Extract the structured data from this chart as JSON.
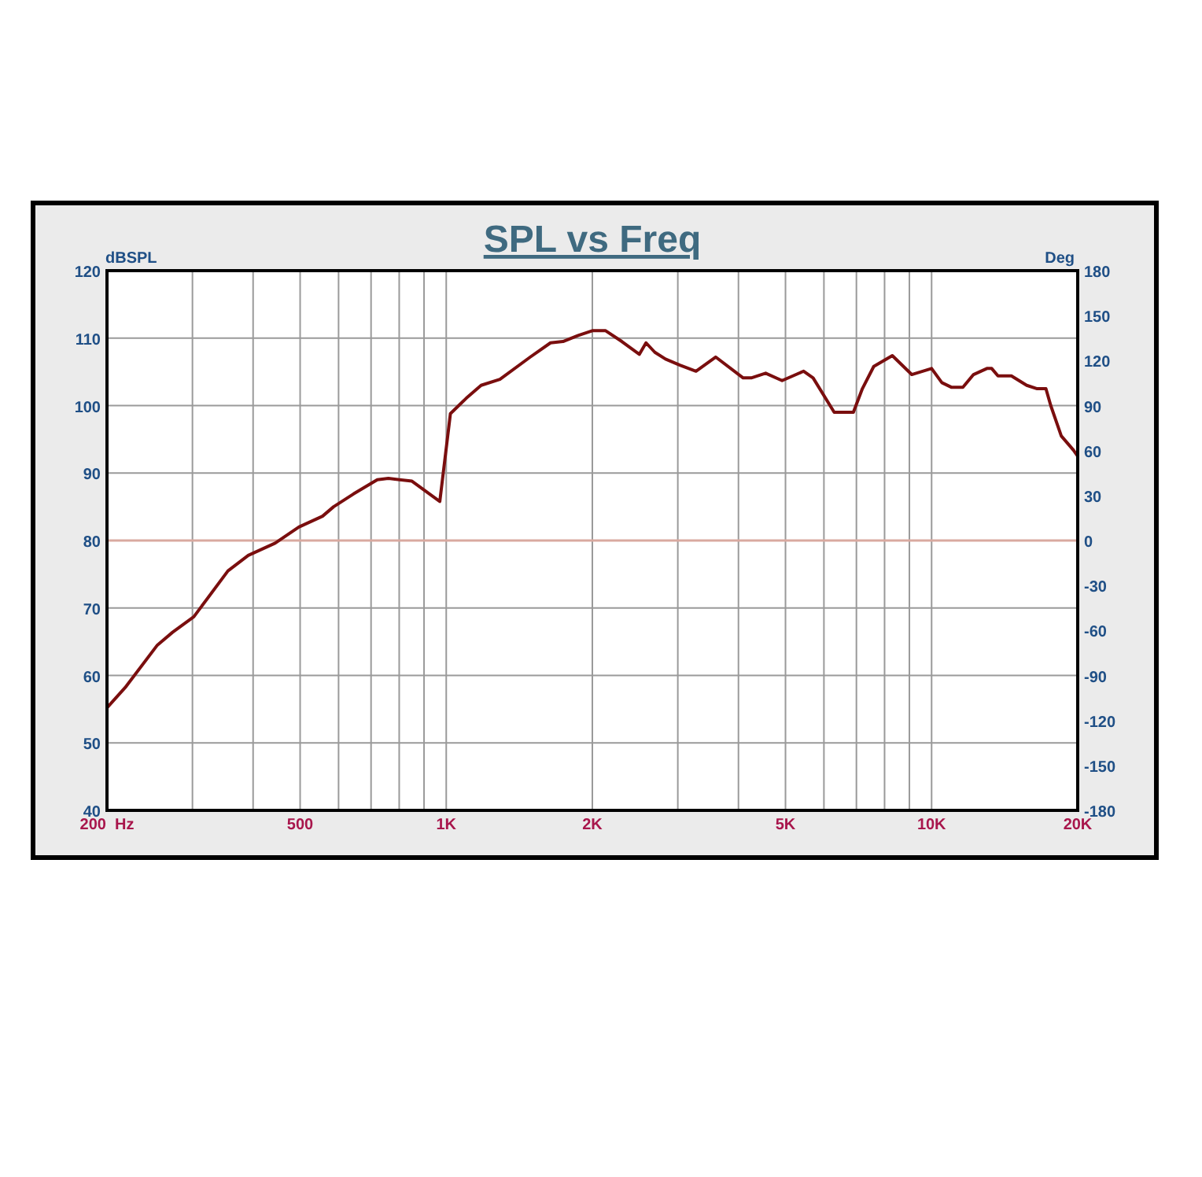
{
  "chart_data": {
    "type": "line",
    "title": "SPL vs Freq",
    "ylabel": "dBSPL",
    "y2label": "Deg",
    "log": "x",
    "x": [
      200,
      218,
      254,
      273,
      302,
      355,
      391,
      444,
      497,
      556,
      586,
      644,
      721,
      760,
      850,
      970,
      1020,
      1100,
      1180,
      1290,
      1490,
      1640,
      1740,
      1870,
      2000,
      2130,
      2300,
      2500,
      2580,
      2690,
      2830,
      3030,
      3270,
      3590,
      4090,
      4250,
      4550,
      4920,
      5450,
      5700,
      6300,
      6900,
      7200,
      7600,
      8300,
      9100,
      10000,
      10500,
      11000,
      11600,
      12200,
      13000,
      13300,
      13700,
      14600,
      15700,
      16500,
      17200,
      17600,
      18500,
      19600,
      20000
    ],
    "series": [
      {
        "color": "#7a0e0e",
        "values": [
          55.2,
          58.2,
          64.5,
          66.4,
          68.7,
          75.5,
          77.8,
          79.6,
          82,
          83.6,
          85,
          86.9,
          89,
          89.2,
          88.8,
          85.8,
          98.8,
          101.1,
          103,
          103.9,
          107.2,
          109.3,
          109.5,
          110.4,
          111.1,
          111.1,
          109.5,
          107.6,
          109.3,
          107.9,
          106.9,
          106,
          105.1,
          107.2,
          104.1,
          104.1,
          104.8,
          103.7,
          105.1,
          104.1,
          99,
          99,
          102.5,
          105.8,
          107.4,
          104.6,
          105.5,
          103.4,
          102.7,
          102.7,
          104.6,
          105.5,
          105.5,
          104.4,
          104.4,
          103,
          102.5,
          102.5,
          100,
          95.5,
          93.4,
          92.5
        ]
      }
    ],
    "xlim": [
      200,
      20000
    ],
    "xticks": [
      {
        "value": 200,
        "label": "200  Hz"
      },
      {
        "value": 300,
        "label": null
      },
      {
        "value": 400,
        "label": null
      },
      500,
      {
        "value": 600,
        "label": null
      },
      {
        "value": 700,
        "label": null
      },
      {
        "value": 800,
        "label": null
      },
      {
        "value": 900,
        "label": null
      },
      {
        "value": 1000,
        "label": "1K"
      },
      {
        "value": 2000,
        "label": "2K"
      },
      {
        "value": 3000,
        "label": null
      },
      {
        "value": 4000,
        "label": null
      },
      {
        "value": 5000,
        "label": "5K"
      },
      {
        "value": 6000,
        "label": null
      },
      {
        "value": 7000,
        "label": null
      },
      {
        "value": 8000,
        "label": null
      },
      {
        "value": 9000,
        "label": null
      },
      {
        "value": 10000,
        "label": "10K"
      },
      {
        "value": 20000,
        "label": "20K"
      }
    ],
    "ylim": [
      40,
      120
    ],
    "yticks": [
      40,
      50,
      60,
      70,
      80,
      90,
      100,
      110,
      120
    ],
    "y2lim": [
      -180,
      180
    ],
    "y2ticks": [
      -180,
      -150,
      -120,
      -90,
      -60,
      -30,
      0,
      30,
      60,
      90,
      120,
      150,
      180
    ],
    "ref_lines": [
      {
        "axis": "y2",
        "value": 0,
        "color": "#d9a9a0"
      }
    ],
    "grid": true
  }
}
